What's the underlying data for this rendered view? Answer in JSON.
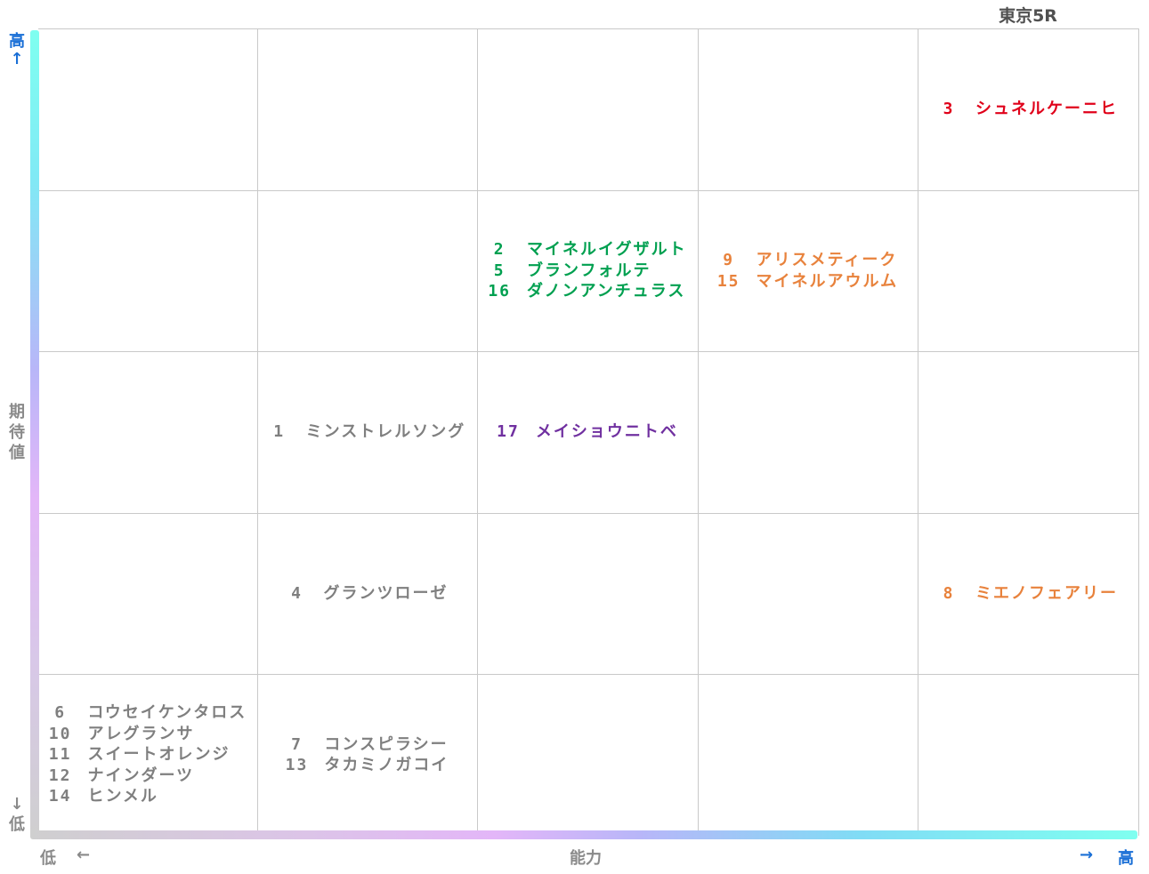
{
  "title": "東京5R",
  "axes": {
    "y_label": "期待値",
    "y_high": "高",
    "y_high_arrow": "↑",
    "y_low_arrow": "↓",
    "y_low": "低",
    "x_label": "能力",
    "x_low": "低",
    "x_low_arrow": "←",
    "x_high_arrow": "→",
    "x_high": "高"
  },
  "colors": {
    "red": "#e0001a",
    "green": "#00a050",
    "orange": "#e8823c",
    "purple": "#7030a0",
    "grey": "#7f7f7f"
  },
  "chart_data": {
    "type": "table",
    "title": "東京5R",
    "xlabel": "能力",
    "ylabel": "期待値",
    "columns": 5,
    "rows": 5,
    "cells": [
      {
        "col": 4,
        "row": 0,
        "color": "red",
        "entries": [
          {
            "num": "3",
            "name": "シュネルケーニヒ"
          }
        ]
      },
      {
        "col": 2,
        "row": 1,
        "color": "green",
        "entries": [
          {
            "num": "2",
            "name": "マイネルイグザルト"
          },
          {
            "num": "5",
            "name": "ブランフォルテ"
          },
          {
            "num": "16",
            "name": "ダノンアンチュラス"
          }
        ]
      },
      {
        "col": 3,
        "row": 1,
        "color": "orange",
        "entries": [
          {
            "num": "9",
            "name": "アリスメティーク"
          },
          {
            "num": "15",
            "name": "マイネルアウルム"
          }
        ]
      },
      {
        "col": 1,
        "row": 2,
        "color": "grey",
        "entries": [
          {
            "num": "1",
            "name": "ミンストレルソング"
          }
        ]
      },
      {
        "col": 2,
        "row": 2,
        "color": "purple",
        "entries": [
          {
            "num": "17",
            "name": "メイショウニトベ"
          }
        ]
      },
      {
        "col": 1,
        "row": 3,
        "color": "grey",
        "entries": [
          {
            "num": "4",
            "name": "グランツローゼ"
          }
        ]
      },
      {
        "col": 4,
        "row": 3,
        "color": "orange",
        "entries": [
          {
            "num": "8",
            "name": "ミエノフェアリー"
          }
        ]
      },
      {
        "col": 0,
        "row": 4,
        "color": "grey",
        "entries": [
          {
            "num": "6",
            "name": "コウセイケンタロス"
          },
          {
            "num": "10",
            "name": "アレグランサ"
          },
          {
            "num": "11",
            "name": "スイートオレンジ"
          },
          {
            "num": "12",
            "name": "ナインダーツ"
          },
          {
            "num": "14",
            "name": "ヒンメル"
          }
        ]
      },
      {
        "col": 1,
        "row": 4,
        "color": "grey",
        "entries": [
          {
            "num": "7",
            "name": "コンスピラシー"
          },
          {
            "num": "13",
            "name": "タカミノガコイ"
          }
        ]
      }
    ]
  }
}
